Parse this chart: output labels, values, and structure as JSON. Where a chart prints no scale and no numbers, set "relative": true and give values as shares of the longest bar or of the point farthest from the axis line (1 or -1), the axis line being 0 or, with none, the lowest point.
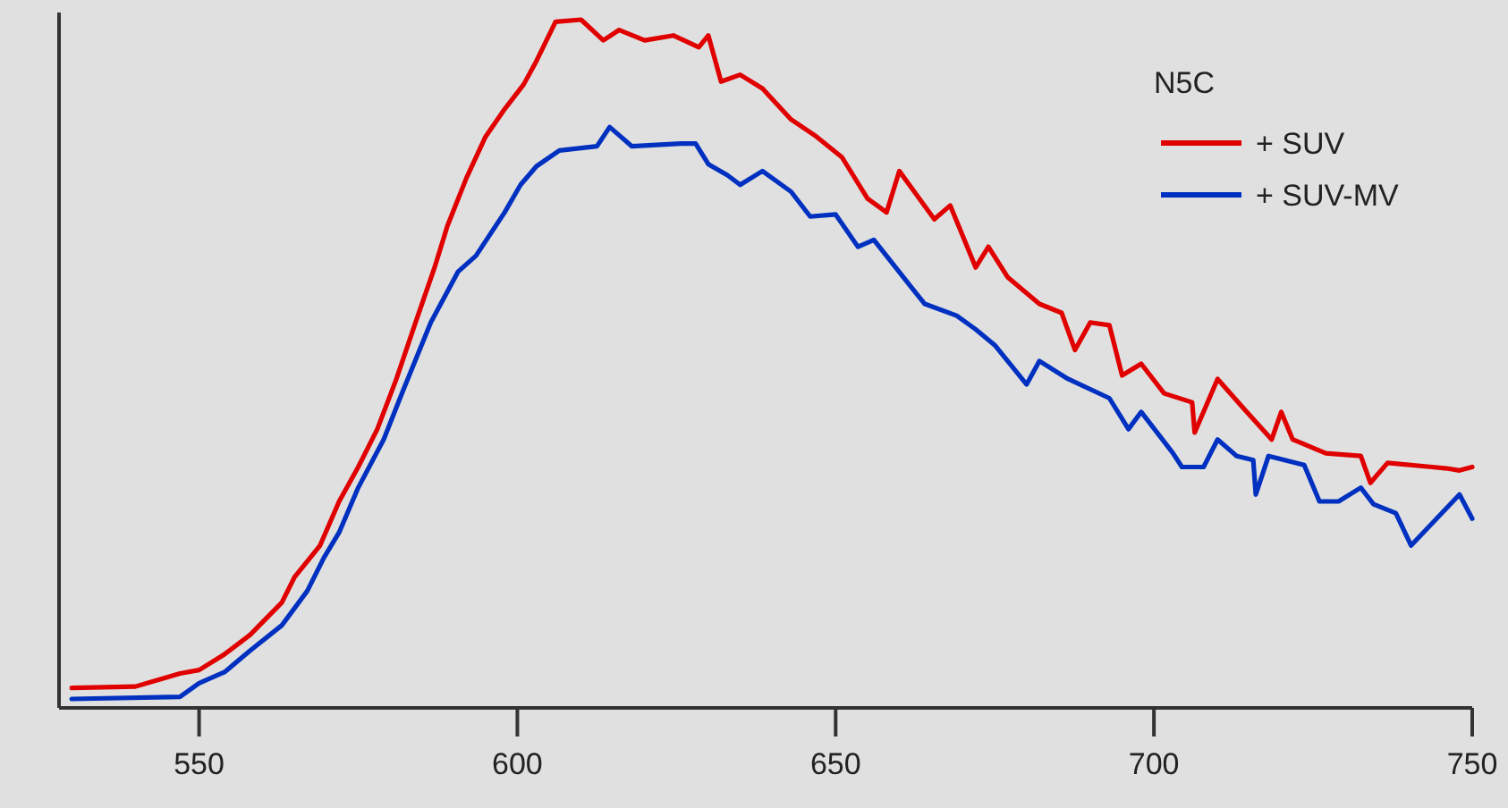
{
  "chart_data": {
    "type": "line",
    "relative": true,
    "xlim": [
      528,
      750
    ],
    "xticks": [
      550,
      600,
      650,
      700,
      750
    ],
    "legend": "top right",
    "legend_title": "N5C",
    "grid": false,
    "line_style": "solid",
    "series": [
      {
        "name": "+ SUV",
        "color": "#e00000",
        "x": [
          530,
          540,
          547,
          550,
          554,
          558,
          563,
          565,
          569,
          572,
          575,
          578,
          581,
          584,
          587,
          589,
          592,
          595,
          598,
          601,
          603,
          606,
          610,
          613.5,
          616,
          620,
          624.5,
          628.5,
          630,
          632,
          635,
          638.5,
          643,
          647,
          651,
          655,
          658,
          660,
          665.5,
          668,
          672,
          674,
          677,
          682,
          685.5,
          687.6,
          690,
          693,
          695,
          698,
          701.6,
          706,
          706.4,
          710,
          714,
          718.5,
          720,
          721.8,
          727,
          732.5,
          734,
          736.7,
          743.7,
          746,
          748,
          750
        ],
        "values": [
          0.029,
          0.031,
          0.05,
          0.055,
          0.078,
          0.106,
          0.153,
          0.19,
          0.236,
          0.3,
          0.35,
          0.405,
          0.478,
          0.56,
          0.64,
          0.7,
          0.77,
          0.83,
          0.87,
          0.906,
          0.94,
          0.997,
          1.0,
          0.97,
          0.985,
          0.97,
          0.977,
          0.96,
          0.977,
          0.91,
          0.92,
          0.9,
          0.855,
          0.83,
          0.8,
          0.74,
          0.72,
          0.78,
          0.71,
          0.73,
          0.64,
          0.67,
          0.626,
          0.587,
          0.574,
          0.52,
          0.56,
          0.556,
          0.483,
          0.5,
          0.457,
          0.444,
          0.4,
          0.478,
          0.436,
          0.39,
          0.43,
          0.39,
          0.37,
          0.366,
          0.327,
          0.356,
          0.35,
          0.348,
          0.345,
          0.35
        ]
      },
      {
        "name": "+ SUV-MV",
        "color": "#0030c0",
        "x": [
          530,
          547,
          550,
          554,
          558,
          563,
          567,
          569.6,
          572,
          575,
          579,
          582,
          586.4,
          590.7,
          593.5,
          598,
          600.5,
          603,
          606.6,
          612.5,
          614.5,
          618,
          625.7,
          628,
          630,
          633,
          635,
          638.5,
          643,
          646,
          650,
          653.5,
          656,
          662,
          664,
          669,
          672,
          675,
          680,
          682,
          686.5,
          693,
          696,
          698,
          703,
          704.4,
          707.8,
          710,
          713,
          715.6,
          716,
          718,
          723.6,
          726,
          729,
          732.5,
          734.5,
          738,
          740.4,
          748,
          750
        ],
        "values": [
          0.013,
          0.016,
          0.036,
          0.052,
          0.083,
          0.12,
          0.17,
          0.218,
          0.255,
          0.32,
          0.39,
          0.46,
          0.56,
          0.634,
          0.657,
          0.72,
          0.76,
          0.787,
          0.81,
          0.816,
          0.844,
          0.816,
          0.82,
          0.82,
          0.79,
          0.774,
          0.76,
          0.78,
          0.75,
          0.714,
          0.717,
          0.67,
          0.68,
          0.61,
          0.587,
          0.57,
          0.55,
          0.527,
          0.47,
          0.504,
          0.478,
          0.45,
          0.405,
          0.43,
          0.37,
          0.35,
          0.35,
          0.39,
          0.366,
          0.36,
          0.31,
          0.366,
          0.353,
          0.3,
          0.3,
          0.32,
          0.296,
          0.283,
          0.236,
          0.31,
          0.275
        ]
      }
    ]
  }
}
